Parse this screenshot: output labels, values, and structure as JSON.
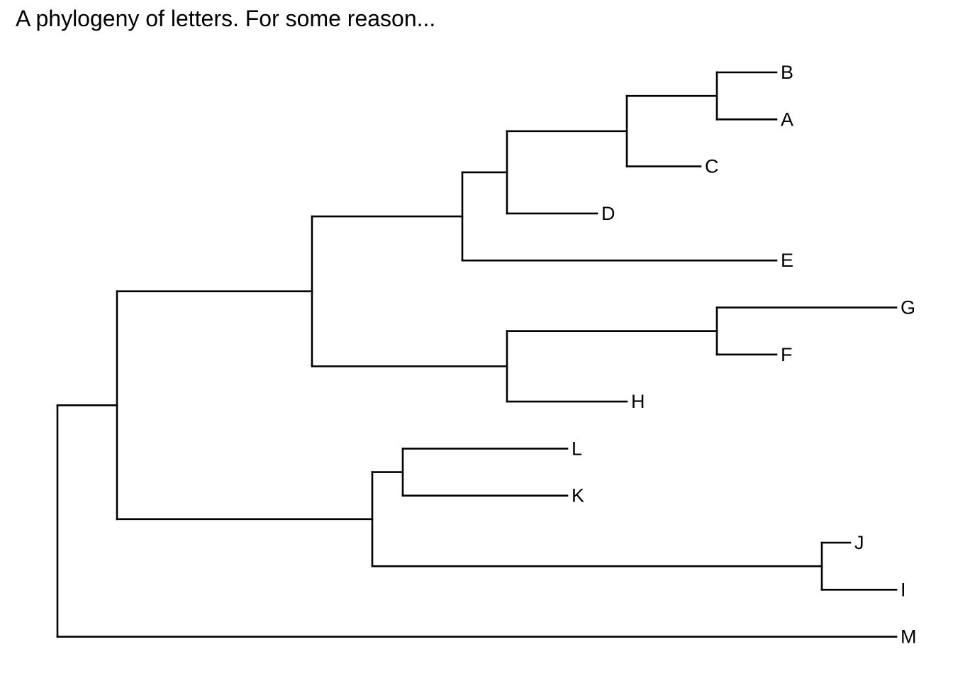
{
  "title": "A phylogeny of letters. For some reason...",
  "tree": {
    "children": [
      {
        "children": [
          {
            "children": [
              {
                "children": [
                  {
                    "children": [
                      {
                        "children": [
                          {
                            "label": "B"
                          },
                          {
                            "label": "A"
                          }
                        ]
                      },
                      {
                        "label": "C"
                      }
                    ]
                  },
                  {
                    "label": "D"
                  }
                ]
              },
              {
                "label": "E"
              }
            ]
          },
          {
            "children": [
              {
                "children": [
                  {
                    "label": "G"
                  },
                  {
                    "label": "F"
                  }
                ]
              },
              {
                "label": "H"
              }
            ]
          }
        ]
      },
      {
        "children": [
          {
            "children": [
              {
                "label": "L"
              },
              {
                "label": "K"
              }
            ]
          },
          {
            "children": [
              {
                "label": "J"
              },
              {
                "label": "I"
              }
            ]
          }
        ]
      }
    ]
  },
  "outgroup": {
    "label": "M"
  }
}
